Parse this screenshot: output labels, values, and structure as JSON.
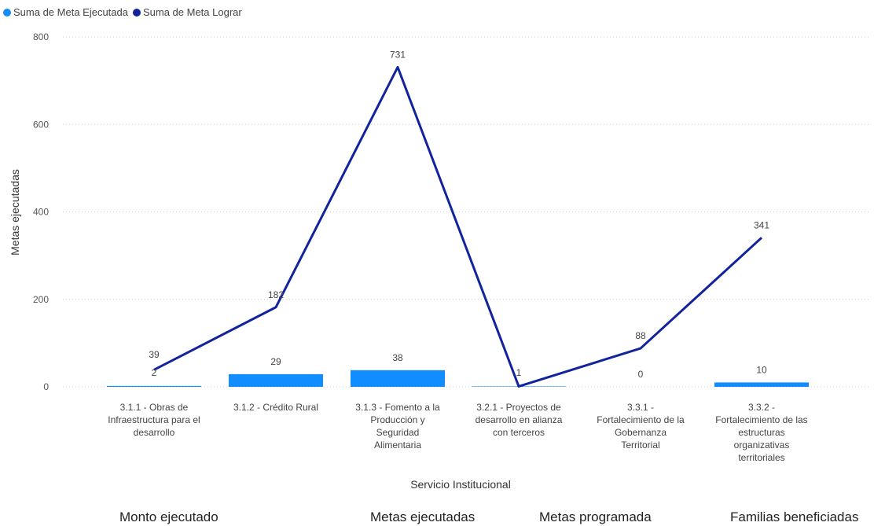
{
  "legend": {
    "series1_label": "Suma de Meta Ejecutada",
    "series2_label": "Suma de Meta Lograr"
  },
  "colors": {
    "bar": "#118DFF",
    "line": "#12239E",
    "grid": "#d0d0d0"
  },
  "chart_data": {
    "type": "bar",
    "categories": [
      [
        "3.1.1 - Obras de",
        "Infraestructura para el",
        "desarrollo"
      ],
      [
        "3.1.2 - Crédito Rural"
      ],
      [
        "3.1.3 - Fomento a la",
        "Producción y",
        "Seguridad",
        "Alimentaria"
      ],
      [
        "3.2.1 - Proyectos de",
        "desarrollo en alianza",
        "con terceros"
      ],
      [
        "3.3.1 -",
        "Fortalecimiento de la",
        "Gobernanza",
        "Territorial"
      ],
      [
        "3.3.2 -",
        "Fortalecimiento de las",
        "estructuras",
        "organizativas",
        "territoriales"
      ]
    ],
    "series": [
      {
        "name": "Suma de Meta Ejecutada",
        "type": "bar",
        "values": [
          2,
          29,
          38,
          1,
          0,
          10
        ]
      },
      {
        "name": "Suma de Meta Lograr",
        "type": "line",
        "values": [
          39,
          182,
          731,
          1,
          88,
          341
        ]
      }
    ],
    "xlabel": "Servicio Institucional",
    "ylabel": "Metas ejecutadas",
    "ylim": [
      0,
      800
    ],
    "yticks": [
      0,
      200,
      400,
      600,
      800
    ],
    "grid": true,
    "legend_position": "top-left"
  },
  "cards": [
    "Monto ejecutado",
    "Metas ejecutadas",
    "Metas programada",
    "Familias beneficiadas"
  ]
}
